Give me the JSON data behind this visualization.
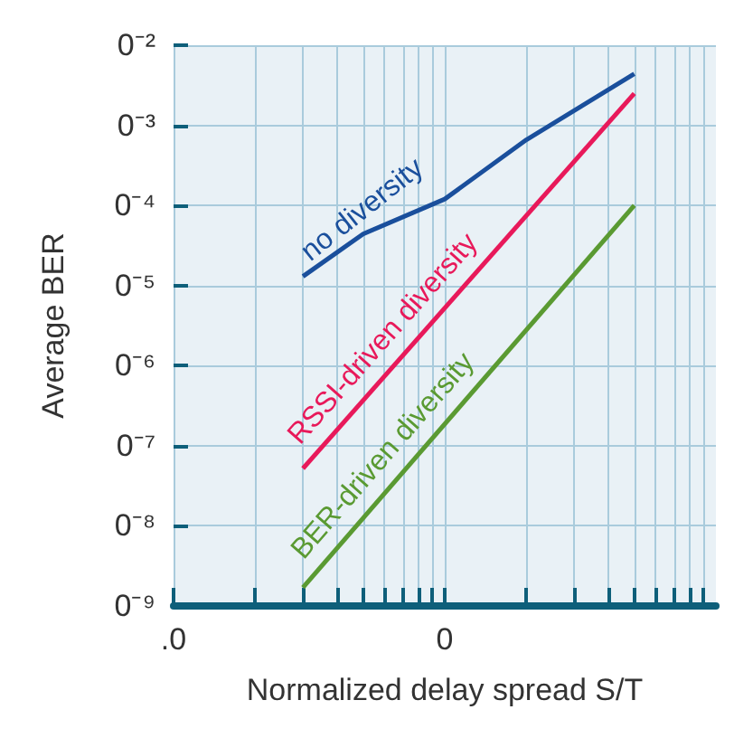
{
  "chart_data": {
    "type": "line",
    "xlabel": "Normalized delay spread S/T",
    "ylabel": "Average BER",
    "log": "xy",
    "grid": true,
    "legend": false,
    "marker": "none",
    "line_style": "solid",
    "xlim": [
      0.01,
      1
    ],
    "xticks": [
      {
        "value": 0.01,
        "label": ".0"
      },
      {
        "value": 0.02,
        "label": null
      },
      {
        "value": 0.03,
        "label": null
      },
      {
        "value": 0.04,
        "label": null
      },
      {
        "value": 0.05,
        "label": null
      },
      {
        "value": 0.06,
        "label": null
      },
      {
        "value": 0.07,
        "label": null
      },
      {
        "value": 0.08,
        "label": null
      },
      {
        "value": 0.09,
        "label": null
      },
      {
        "value": 0.1,
        "label": "0"
      },
      {
        "value": 0.2,
        "label": null
      },
      {
        "value": 0.3,
        "label": null
      },
      {
        "value": 0.4,
        "label": null
      },
      {
        "value": 0.5,
        "label": null
      },
      {
        "value": 0.6,
        "label": null
      },
      {
        "value": 0.7,
        "label": null
      },
      {
        "value": 0.8,
        "label": null
      },
      {
        "value": 0.9,
        "label": null
      }
    ],
    "ylim": [
      1e-09,
      0.01
    ],
    "yticks": [
      {
        "value": 1e-09,
        "label": "0⁻⁹"
      },
      {
        "value": 1e-08,
        "label": "0⁻⁸"
      },
      {
        "value": 1e-07,
        "label": "0⁻⁷"
      },
      {
        "value": 1e-06,
        "label": "0⁻⁶"
      },
      {
        "value": 1e-05,
        "label": "0⁻⁵"
      },
      {
        "value": 0.0001,
        "label": "0⁻⁴"
      },
      {
        "value": 0.001,
        "label": "0⁻³"
      },
      {
        "value": 0.01,
        "label": "0⁻²"
      }
    ],
    "series": [
      {
        "name": "no diversity",
        "color": "#1a4f9c",
        "x": [
          0.03,
          0.05,
          0.1,
          0.2,
          0.5
        ],
        "values": [
          1.3e-05,
          4.4e-05,
          0.00012,
          0.00066,
          0.0044
        ]
      },
      {
        "name": "RSSI-driven diversity",
        "color": "#e8195a",
        "x": [
          0.03,
          0.5
        ],
        "values": [
          5.2e-08,
          0.0025
        ]
      },
      {
        "name": "BER-driven diversity",
        "color": "#5a9a32",
        "x": [
          0.03,
          0.5
        ],
        "values": [
          1.7e-09,
          0.0001
        ]
      }
    ]
  }
}
